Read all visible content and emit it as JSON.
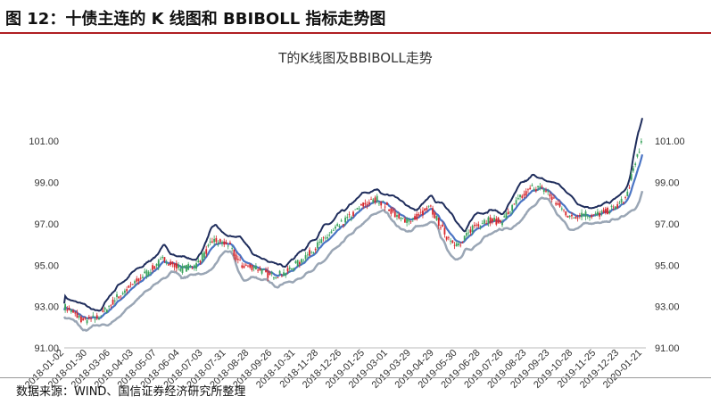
{
  "header": {
    "title": "图 12：十债主连的 K 线图和 BBIBOLL 指标走势图"
  },
  "footer": {
    "source": "数据来源：WIND、国信证券经济研究所整理"
  },
  "colors": {
    "accent_rule": "#b01e23",
    "candle_up": "#3aa35c",
    "candle_down": "#d7262b",
    "bbi": "#4a74c4",
    "upper": "#1f2d5c",
    "lower": "#9aa6b5"
  },
  "chart_data": {
    "type": "candlestick",
    "title": "T的K线图及BBIBOLL走势",
    "y_ticks": [
      "91.00",
      "93.00",
      "95.00",
      "97.00",
      "99.00",
      "101.00"
    ],
    "ylim": [
      91,
      102
    ],
    "x_ticks": [
      "2018-01-02",
      "2018-01-30",
      "2018-03-06",
      "2018-04-03",
      "2018-05-07",
      "2018-06-04",
      "2018-07-03",
      "2018-07-31",
      "2018-08-28",
      "2018-09-26",
      "2018-10-31",
      "2018-11-28",
      "2018-12-26",
      "2019-01-25",
      "2019-03-01",
      "2019-03-29",
      "2019-04-29",
      "2019-05-30",
      "2019-06-28",
      "2019-07-26",
      "2019-08-23",
      "2019-09-23",
      "2019-10-28",
      "2019-11-25",
      "2019-12-23",
      "2020-01-21"
    ],
    "close_trend": [
      [
        0,
        93.0
      ],
      [
        20,
        92.3
      ],
      [
        35,
        92.5
      ],
      [
        52,
        93.4
      ],
      [
        72,
        94.2
      ],
      [
        100,
        95.3
      ],
      [
        118,
        94.8
      ],
      [
        133,
        95.0
      ],
      [
        150,
        96.2
      ],
      [
        165,
        96.0
      ],
      [
        178,
        95.0
      ],
      [
        192,
        94.9
      ],
      [
        207,
        94.5
      ],
      [
        222,
        94.6
      ],
      [
        240,
        95.3
      ],
      [
        256,
        96.0
      ],
      [
        270,
        96.6
      ],
      [
        286,
        97.3
      ],
      [
        300,
        97.9
      ],
      [
        315,
        98.2
      ],
      [
        326,
        97.8
      ],
      [
        338,
        97.2
      ],
      [
        350,
        97.2
      ],
      [
        368,
        97.8
      ],
      [
        385,
        96.4
      ],
      [
        398,
        95.9
      ],
      [
        412,
        96.9
      ],
      [
        426,
        97.2
      ],
      [
        440,
        97.1
      ],
      [
        458,
        98.2
      ],
      [
        472,
        98.8
      ],
      [
        485,
        98.6
      ],
      [
        497,
        97.9
      ],
      [
        510,
        97.3
      ],
      [
        522,
        97.5
      ],
      [
        534,
        97.4
      ],
      [
        546,
        97.6
      ],
      [
        558,
        97.9
      ],
      [
        566,
        98.3
      ],
      [
        576,
        100.2
      ],
      [
        582,
        101.1
      ]
    ],
    "series_legend": []
  }
}
